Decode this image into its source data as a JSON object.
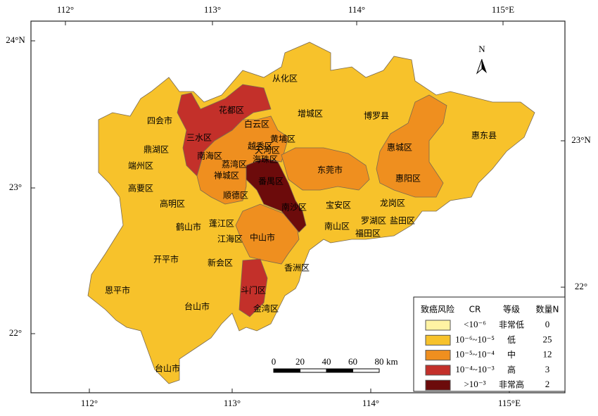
{
  "axis_labels": {
    "top": [
      "112°",
      "113°",
      "114°",
      "115°E"
    ],
    "bottom": [
      "112°",
      "113°",
      "114°",
      "115°E"
    ],
    "left": [
      "24°N",
      "23°",
      "22°"
    ],
    "right": [
      "23°N",
      "22°"
    ]
  },
  "north_arrow": "N",
  "scale_bar": {
    "labels": [
      "0",
      "20",
      "40",
      "60",
      "80"
    ],
    "unit": "km"
  },
  "regions": [
    "四会市",
    "鼎湖区",
    "端州区",
    "高要区",
    "高明区",
    "鹤山市",
    "蓬江区",
    "江海区",
    "开平市",
    "新会区",
    "恩平市",
    "台山市",
    "台山市",
    "斗门区",
    "金湾区",
    "香洲区",
    "中山市",
    "南沙区",
    "番禺区",
    "顺德区",
    "禅城区",
    "荔湾区",
    "南海区",
    "三水区",
    "花都区",
    "白云区",
    "越秀区",
    "黄埔区",
    "天河区",
    "海珠区",
    "从化区",
    "增城区",
    "博罗县",
    "惠城区",
    "惠阳区",
    "惠东县",
    "东莞市",
    "宝安区",
    "龙岗区",
    "南山区",
    "罗湖区",
    "盐田区",
    "福田区"
  ],
  "legend": {
    "headers": [
      "致癌风险",
      "CR",
      "等级",
      "数量N"
    ],
    "rows": [
      {
        "cr": "<10⁻⁶",
        "level": "非常低",
        "count": 0,
        "color": "#fff3a3"
      },
      {
        "cr": "10⁻⁶~10⁻⁵",
        "level": "低",
        "count": 25,
        "color": "#f7c22b"
      },
      {
        "cr": "10⁻⁵~10⁻⁴",
        "level": "中",
        "count": 12,
        "color": "#ef8f1f"
      },
      {
        "cr": "10⁻⁴~10⁻³",
        "level": "高",
        "count": 3,
        "color": "#c3302a"
      },
      {
        "cr": ">10⁻³",
        "level": "非常高",
        "count": 2,
        "color": "#6c0b0b"
      }
    ]
  }
}
